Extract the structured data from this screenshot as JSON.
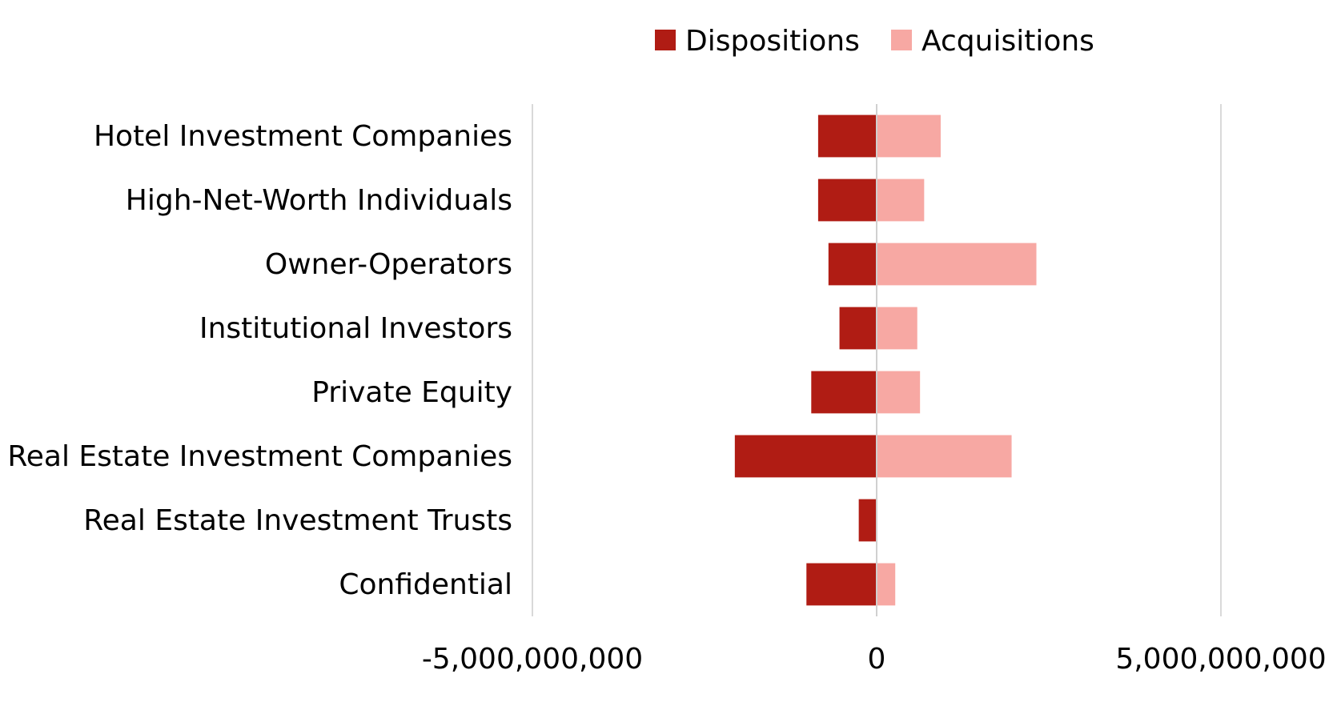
{
  "chart_data": {
    "type": "bar",
    "orientation": "horizontal",
    "stacked": "diverging",
    "categories": [
      "Hotel Investment Companies",
      "High-Net-Worth Individuals",
      "Owner-Operators",
      "Institutional Investors",
      "Private Equity",
      "Real Estate Investment Companies",
      "Real Estate Investment Trusts",
      "Confidential"
    ],
    "series": [
      {
        "name": "Dispositions",
        "color": "#b01c14",
        "values": [
          -850000000,
          -850000000,
          -700000000,
          -540000000,
          -950000000,
          -2060000000,
          -260000000,
          -1020000000
        ]
      },
      {
        "name": "Acquisitions",
        "color": "#f7a8a3",
        "values": [
          930000000,
          690000000,
          2320000000,
          590000000,
          630000000,
          1960000000,
          0,
          270000000
        ]
      }
    ],
    "xlim": [
      -5000000000,
      5000000000
    ],
    "x_ticks": [
      -5000000000,
      0,
      5000000000
    ],
    "x_tick_labels": [
      "-5,000,000,000",
      "0",
      "5,000,000,000"
    ],
    "title": "",
    "xlabel": "",
    "ylabel": "",
    "grid": "vertical",
    "legend": "top-center"
  }
}
